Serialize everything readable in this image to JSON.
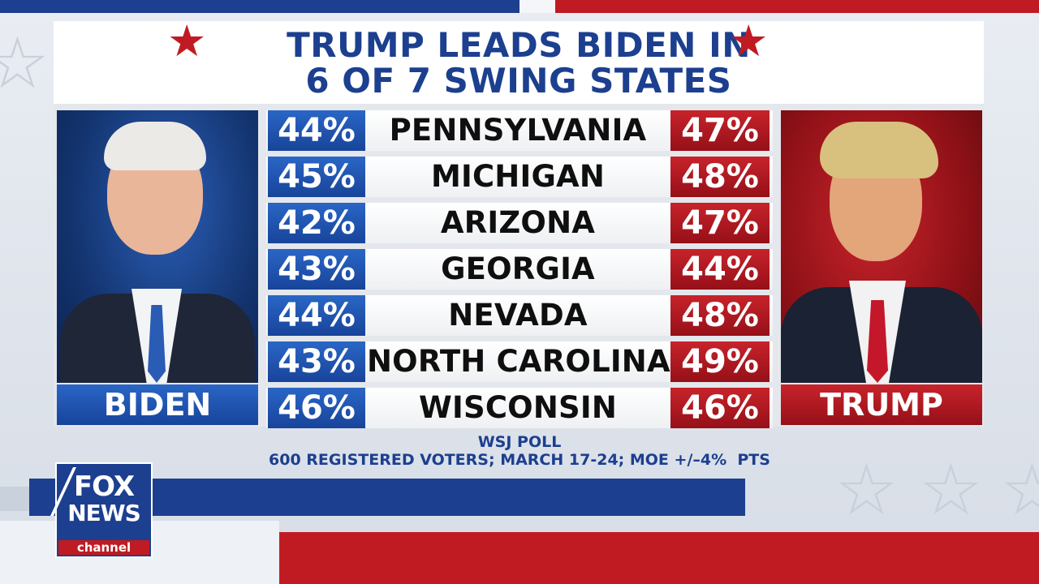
{
  "colors": {
    "blue": "#1c3f8f",
    "red": "#c01b22",
    "white": "#ffffff"
  },
  "headline": {
    "line1": "TRUMP LEADS BIDEN IN",
    "line2": "6 OF 7 SWING STATES"
  },
  "candidates": {
    "left": "BIDEN",
    "right": "TRUMP"
  },
  "rows": [
    {
      "state": "PENNSYLVANIA",
      "biden": "44%",
      "trump": "47%"
    },
    {
      "state": "MICHIGAN",
      "biden": "45%",
      "trump": "48%"
    },
    {
      "state": "ARIZONA",
      "biden": "42%",
      "trump": "47%"
    },
    {
      "state": "GEORGIA",
      "biden": "43%",
      "trump": "44%"
    },
    {
      "state": "NEVADA",
      "biden": "44%",
      "trump": "48%"
    },
    {
      "state": "NORTH CAROLINA",
      "biden": "43%",
      "trump": "49%"
    },
    {
      "state": "WISCONSIN",
      "biden": "46%",
      "trump": "46%"
    }
  ],
  "source": {
    "line1": "WSJ POLL",
    "line2": "600 REGISTERED VOTERS; MARCH 17-24; MOE +/–4%  PTS"
  },
  "logo": {
    "line1": "FOX",
    "line2": "NEWS",
    "line3": "channel"
  },
  "icons": {
    "title_star": "★",
    "bg_star": "☆"
  }
}
